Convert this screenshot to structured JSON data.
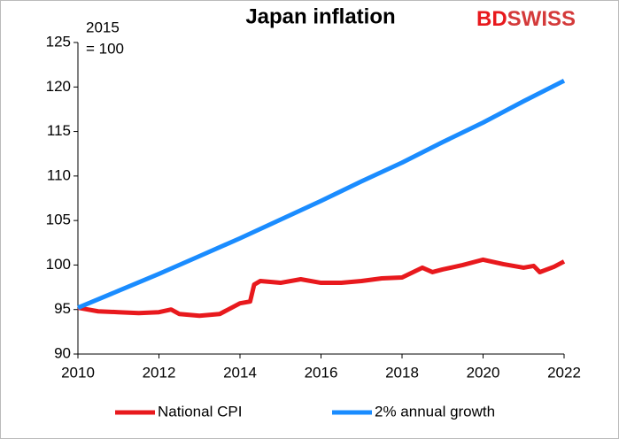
{
  "chart_data": {
    "type": "line",
    "title": "Japan inflation",
    "annotation": [
      "2015",
      "= 100"
    ],
    "logo": [
      "BD",
      "SWISS"
    ],
    "xlim": [
      2010,
      2022
    ],
    "xticks": [
      2010,
      2012,
      2014,
      2016,
      2018,
      2020,
      2022
    ],
    "ylim": [
      90,
      125
    ],
    "yticks": [
      90,
      95,
      100,
      105,
      110,
      115,
      120,
      125
    ],
    "grid": false,
    "legend": "bottom",
    "series": [
      {
        "name": "National CPI",
        "color": "#e8191d",
        "x": [
          2010.0,
          2010.5,
          2011.0,
          2011.5,
          2012.0,
          2012.3,
          2012.5,
          2013.0,
          2013.5,
          2014.0,
          2014.25,
          2014.35,
          2014.5,
          2015.0,
          2015.5,
          2016.0,
          2016.5,
          2017.0,
          2017.5,
          2018.0,
          2018.5,
          2018.75,
          2019.0,
          2019.5,
          2020.0,
          2020.5,
          2021.0,
          2021.25,
          2021.4,
          2021.75,
          2022.0
        ],
        "values": [
          95.2,
          94.8,
          94.7,
          94.6,
          94.7,
          95.0,
          94.5,
          94.3,
          94.5,
          95.7,
          95.9,
          97.8,
          98.2,
          98.0,
          98.4,
          98.0,
          98.0,
          98.2,
          98.5,
          98.6,
          99.7,
          99.2,
          99.5,
          100.0,
          100.6,
          100.1,
          99.7,
          99.9,
          99.2,
          99.8,
          100.4
        ]
      },
      {
        "name": "2% annual growth",
        "color": "#1a8cff",
        "x": [
          2010,
          2011,
          2012,
          2013,
          2014,
          2015,
          2016,
          2017,
          2018,
          2019,
          2020,
          2021,
          2022
        ],
        "values": [
          95.2,
          97.1,
          99.0,
          101.0,
          103.0,
          105.1,
          107.2,
          109.4,
          111.5,
          113.8,
          116.0,
          118.4,
          120.7
        ]
      }
    ]
  }
}
